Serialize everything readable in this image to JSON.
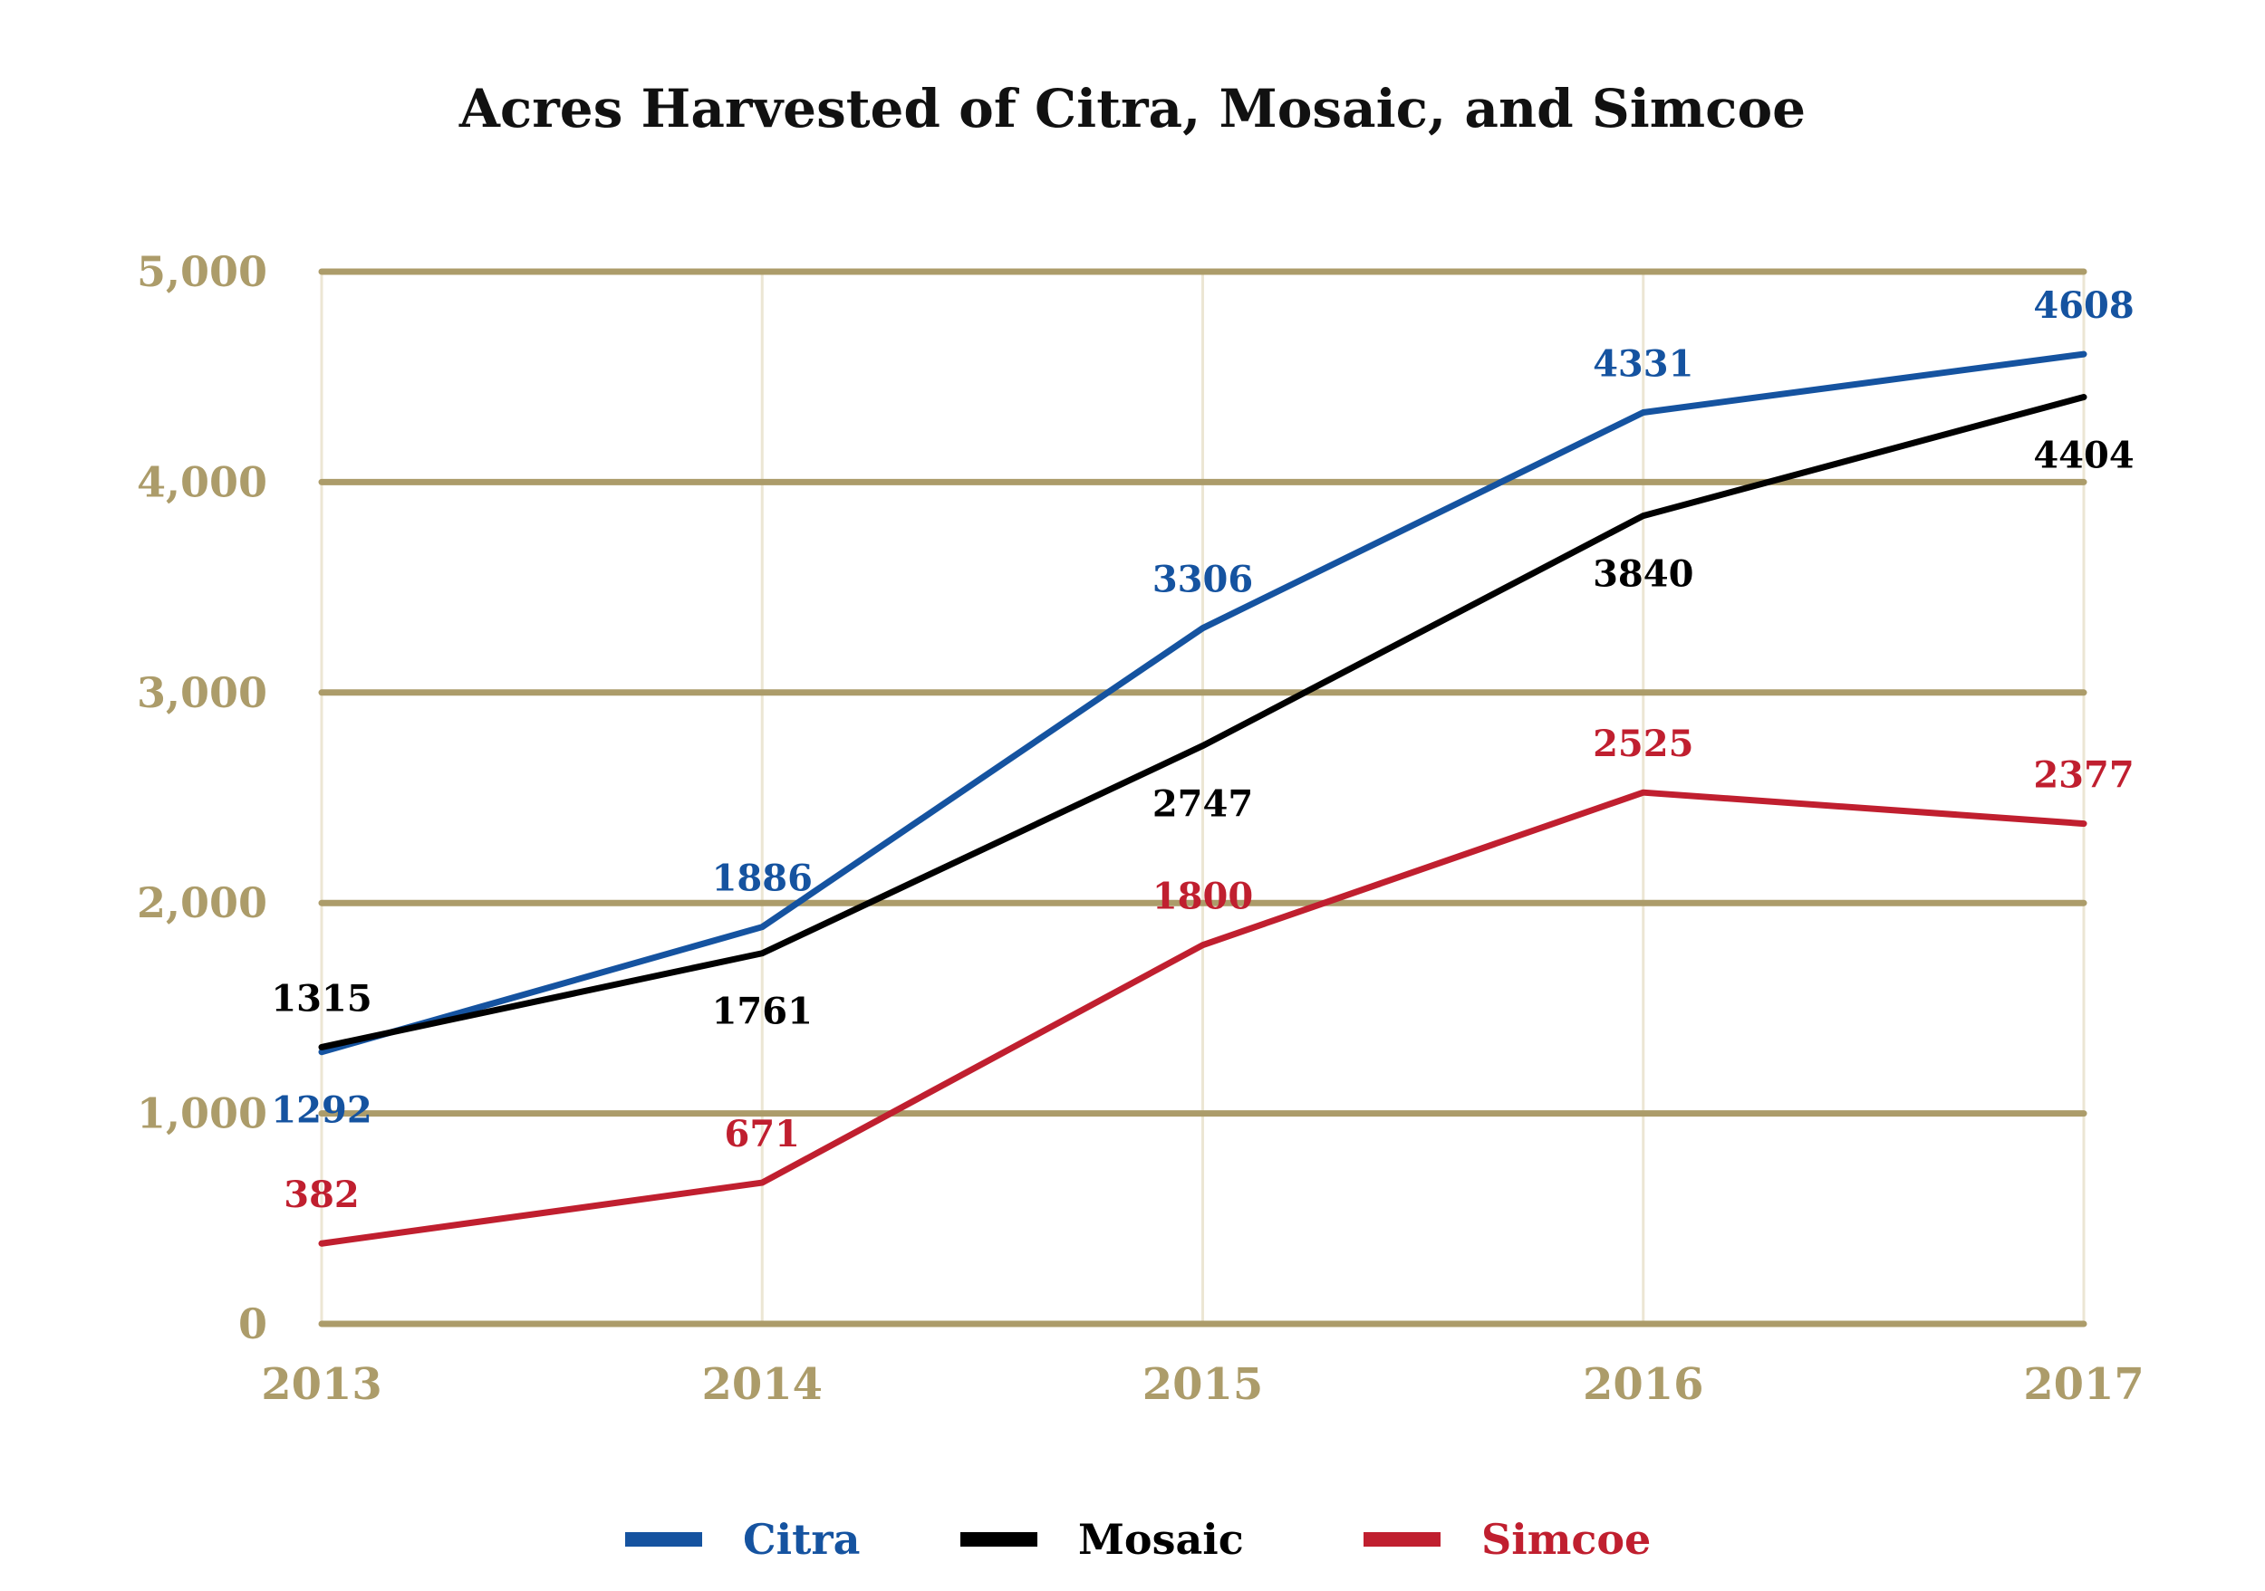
{
  "chart_data": {
    "type": "line",
    "title": "Acres Harvested of Citra, Mosaic, and Simcoe",
    "xlabel": "",
    "ylabel": "",
    "x": [
      "2013",
      "2014",
      "2015",
      "2016",
      "2017"
    ],
    "ylim": [
      0,
      5000
    ],
    "yticks": [
      "0",
      "1,000",
      "2,000",
      "3,000",
      "4,000",
      "5,000"
    ],
    "grid": true,
    "legend_position": "bottom",
    "series": [
      {
        "name": "Citra",
        "color": "#1553a0",
        "values": [
          1292,
          1886,
          3306,
          4331,
          4608
        ]
      },
      {
        "name": "Mosaic",
        "color": "#000000",
        "values": [
          1315,
          1761,
          2747,
          3840,
          4404
        ]
      },
      {
        "name": "Simcoe",
        "color": "#c01f2f",
        "values": [
          382,
          671,
          1800,
          2525,
          2377
        ]
      }
    ],
    "colors": {
      "grid": "#ac9c6a",
      "vgrid": "#ece6d4",
      "tick_text": "#ac9c6a"
    }
  }
}
